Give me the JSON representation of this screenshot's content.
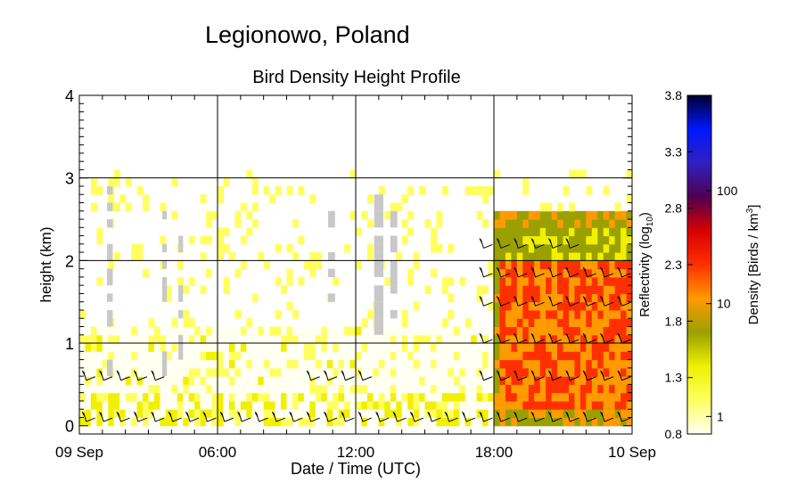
{
  "header": {
    "site": "Legionowo, Poland",
    "title": "Bird Density Height Profile"
  },
  "chart_data": {
    "type": "heatmap",
    "title": "Bird Density Height Profile",
    "subtitle": "Legionowo, Poland",
    "xlabel": "Date / Time (UTC)",
    "ylabel": "height (km)",
    "x_ticks": [
      "09 Sep",
      "06:00",
      "12:00",
      "18:00",
      "10 Sep"
    ],
    "y_ticks": [
      "0",
      "1",
      "2",
      "3",
      "4"
    ],
    "xlim_hours": [
      0,
      24
    ],
    "ylim_km": [
      -0.1,
      4.0
    ],
    "grid": true,
    "colorbar": {
      "left_label": "Reflectivity (log",
      "left_label_sub": "10",
      "left_label_end": ")",
      "left_ticks": [
        "0.8",
        "1.3",
        "1.8",
        "2.3",
        "2.8",
        "3.3",
        "3.8"
      ],
      "right_label": "Density [Birds / km",
      "right_label_sup": "3",
      "right_label_end": "]",
      "right_ticks": [
        "1",
        "10",
        "100"
      ],
      "stops": [
        "#fffff2",
        "#ffff60",
        "#f0f000",
        "#9aa000",
        "#ff9a00",
        "#ff3000",
        "#d80000",
        "#500050",
        "#3020c0",
        "#0018ff",
        "#000030"
      ]
    },
    "density_cells": [
      {
        "t0": 17.8,
        "t1": 24.0,
        "h0": 0.1,
        "h1": 2.6,
        "level": 0.35
      },
      {
        "t0": 18.2,
        "t1": 24.0,
        "h0": 0.3,
        "h1": 2.0,
        "level": 0.5
      },
      {
        "t0": 19.0,
        "t1": 20.0,
        "h0": 2.1,
        "h1": 2.4,
        "level": 0.3
      }
    ],
    "wind_barbs_count": 0
  }
}
